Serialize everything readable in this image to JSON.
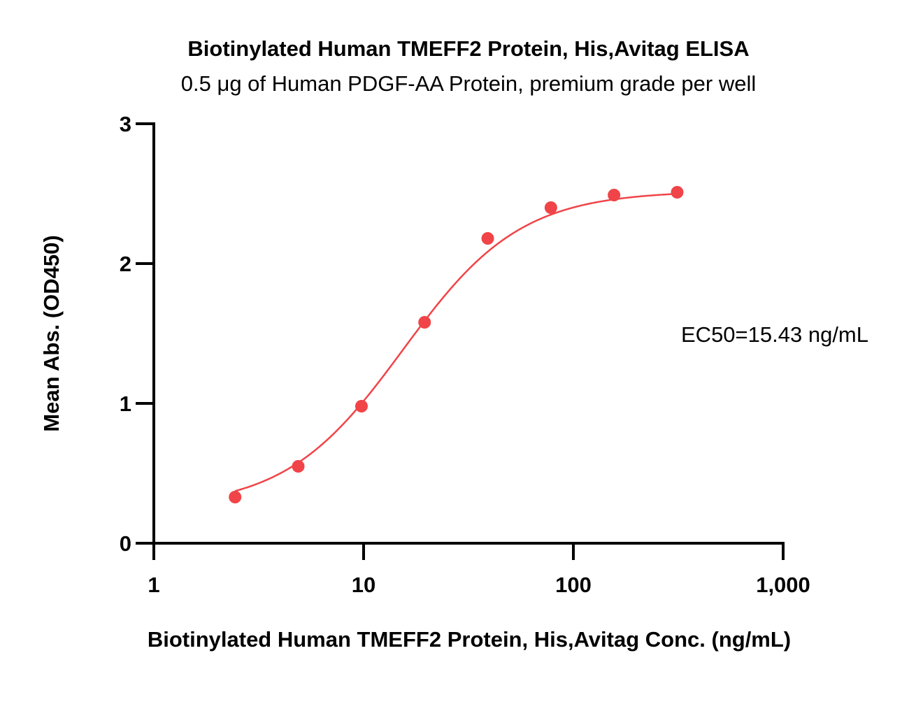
{
  "chart_data": {
    "type": "scatter",
    "title": "Biotinylated Human TMEFF2 Protein, His,Avitag ELISA",
    "subtitle": "0.5 μg of Human PDGF-AA Protein, premium grade per well",
    "xlabel": "Biotinylated Human TMEFF2 Protein, His,Avitag Conc. (ng/mL)",
    "ylabel": "Mean Abs. (OD450)",
    "x_scale": "log",
    "xlim": [
      1,
      1000
    ],
    "ylim": [
      0,
      3
    ],
    "x_ticks": [
      1,
      10,
      100,
      1000
    ],
    "x_tick_labels": [
      "1",
      "10",
      "100",
      "1,000"
    ],
    "y_ticks": [
      0,
      1,
      2,
      3
    ],
    "y_tick_labels": [
      "0",
      "1",
      "2",
      "3"
    ],
    "grid": false,
    "annotation": "EC50=15.43 ng/mL",
    "series": [
      {
        "color": "#f04448",
        "x": [
          2.44,
          4.88,
          9.77,
          19.53,
          39.06,
          78.13,
          156.25,
          312.5
        ],
        "y": [
          0.33,
          0.55,
          0.98,
          1.58,
          2.18,
          2.4,
          2.49,
          2.51
        ]
      }
    ],
    "fit": {
      "type": "4PL",
      "bottom": 0.25,
      "top": 2.52,
      "ec50": 15.43,
      "hill": 1.55,
      "color": "#f04448"
    }
  }
}
